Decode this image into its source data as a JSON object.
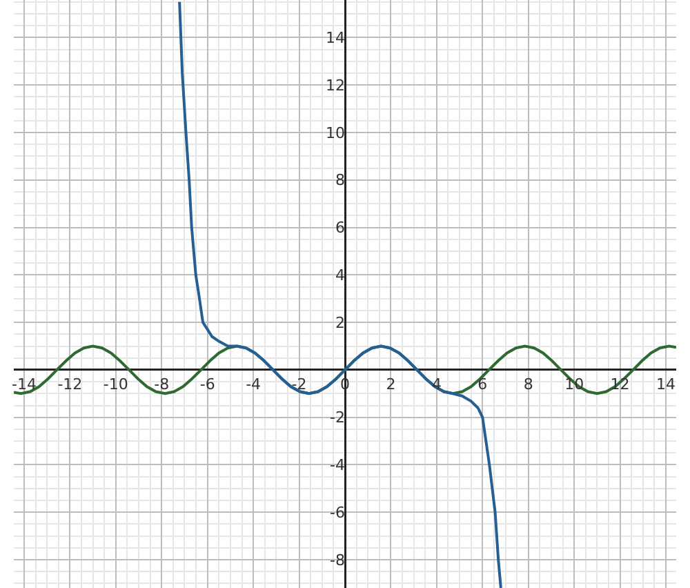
{
  "chart_data": {
    "type": "line",
    "xlim": [
      -14.45,
      14.45
    ],
    "ylim": [
      -9.19,
      15.58
    ],
    "xticks": [
      -14,
      -12,
      -10,
      -8,
      -6,
      -4,
      -2,
      0,
      2,
      4,
      6,
      8,
      10,
      12,
      14
    ],
    "yticks": [
      -8,
      -6,
      -4,
      -2,
      2,
      4,
      6,
      8,
      10,
      12,
      14
    ],
    "grid": true,
    "marker": "none",
    "line_style": "solid",
    "series": [
      {
        "color": "#2e6b33",
        "x": [
          -14.45,
          -14.14,
          -13.74,
          -13.35,
          -12.96,
          -12.57,
          -12.17,
          -11.78,
          -11.39,
          -11.0,
          -10.6,
          -10.21,
          -9.82,
          -9.42,
          -9.03,
          -8.64,
          -8.25,
          -7.85,
          -7.46,
          -7.07,
          -6.68,
          -6.28,
          -5.89,
          -5.5,
          -5.11,
          -4.71,
          -4.32,
          -3.93,
          -3.53,
          -3.14,
          -2.75,
          -2.36,
          -1.96,
          -1.57,
          -1.18,
          -0.79,
          -0.39,
          0,
          0.39,
          0.79,
          1.18,
          1.57,
          1.96,
          2.36,
          2.75,
          3.14,
          3.53,
          3.93,
          4.32,
          4.71,
          5.11,
          5.5,
          5.89,
          6.28,
          6.68,
          7.07,
          7.46,
          7.85,
          8.25,
          8.64,
          9.03,
          9.42,
          9.82,
          10.21,
          10.6,
          11.0,
          11.39,
          11.78,
          12.17,
          12.57,
          12.96,
          13.35,
          13.74,
          14.14,
          14.45
        ],
        "values": [
          -0.95,
          -1,
          -0.92,
          -0.71,
          -0.38,
          0,
          0.38,
          0.71,
          0.92,
          1,
          0.92,
          0.71,
          0.38,
          0,
          -0.38,
          -0.71,
          -0.92,
          -1,
          -0.92,
          -0.71,
          -0.38,
          0,
          0.38,
          0.71,
          0.92,
          1,
          0.92,
          0.71,
          0.38,
          0,
          -0.38,
          -0.71,
          -0.92,
          -1,
          -0.92,
          -0.71,
          -0.38,
          0,
          0.38,
          0.71,
          0.92,
          1,
          0.92,
          0.71,
          0.38,
          0,
          -0.38,
          -0.71,
          -0.92,
          -1,
          -0.92,
          -0.71,
          -0.38,
          0,
          0.38,
          0.71,
          0.92,
          1,
          0.92,
          0.71,
          0.38,
          0,
          -0.38,
          -0.71,
          -0.92,
          -1,
          -0.92,
          -0.71,
          -0.38,
          0,
          0.38,
          0.71,
          0.92,
          1,
          0.95
        ]
      },
      {
        "color": "#265f94",
        "x": [
          -7.22,
          -7.1,
          -6.94,
          -6.8,
          -6.69,
          -6.51,
          -6.35,
          -6.2,
          -6.0,
          -5.8,
          -5.5,
          -5.11,
          -4.71,
          -4.32,
          -3.93,
          -3.53,
          -3.14,
          -2.75,
          -2.36,
          -1.96,
          -1.57,
          -1.18,
          -0.79,
          -0.39,
          0,
          0.39,
          0.79,
          1.18,
          1.57,
          1.96,
          2.36,
          2.75,
          3.14,
          3.53,
          3.93,
          4.32,
          4.71,
          5.11,
          5.5,
          5.8,
          6.0,
          6.3,
          6.55,
          6.69,
          6.8
        ],
        "values": [
          15.5,
          12.5,
          10,
          8,
          6,
          4,
          3,
          2,
          1.7,
          1.4,
          1.2,
          1.0,
          1,
          0.92,
          0.71,
          0.38,
          0,
          -0.38,
          -0.71,
          -0.92,
          -1,
          -0.92,
          -0.71,
          -0.38,
          0,
          0.38,
          0.71,
          0.92,
          1,
          0.92,
          0.71,
          0.38,
          0,
          -0.38,
          -0.71,
          -0.92,
          -1,
          -1.1,
          -1.32,
          -1.6,
          -2,
          -4,
          -6,
          -8,
          -9.19
        ]
      }
    ]
  }
}
